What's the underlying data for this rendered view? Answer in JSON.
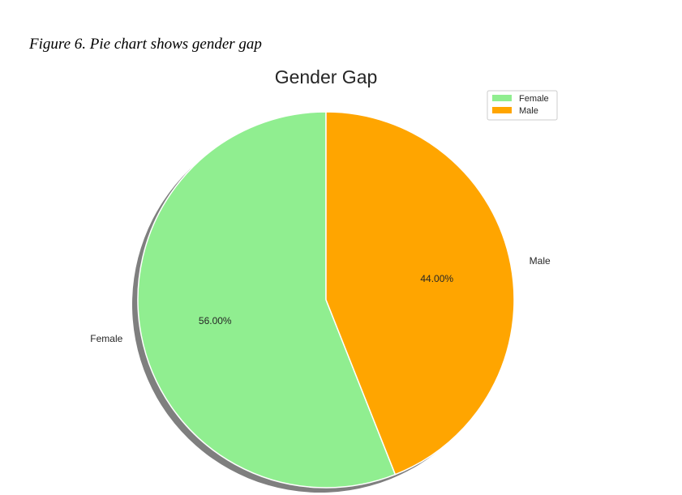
{
  "figure": {
    "caption": "Figure 6. Pie chart shows gender gap"
  },
  "chart_data": {
    "type": "pie",
    "title": "Gender Gap",
    "legend_position": "upper-right",
    "shadow": true,
    "start_angle_deg": 90,
    "direction": "counterclockwise",
    "slices": [
      {
        "label": "Female",
        "value": 56.0,
        "pct_label": "56.00%",
        "color": "#90ee90"
      },
      {
        "label": "Male",
        "value": 44.0,
        "pct_label": "44.00%",
        "color": "#ffa500"
      }
    ]
  }
}
